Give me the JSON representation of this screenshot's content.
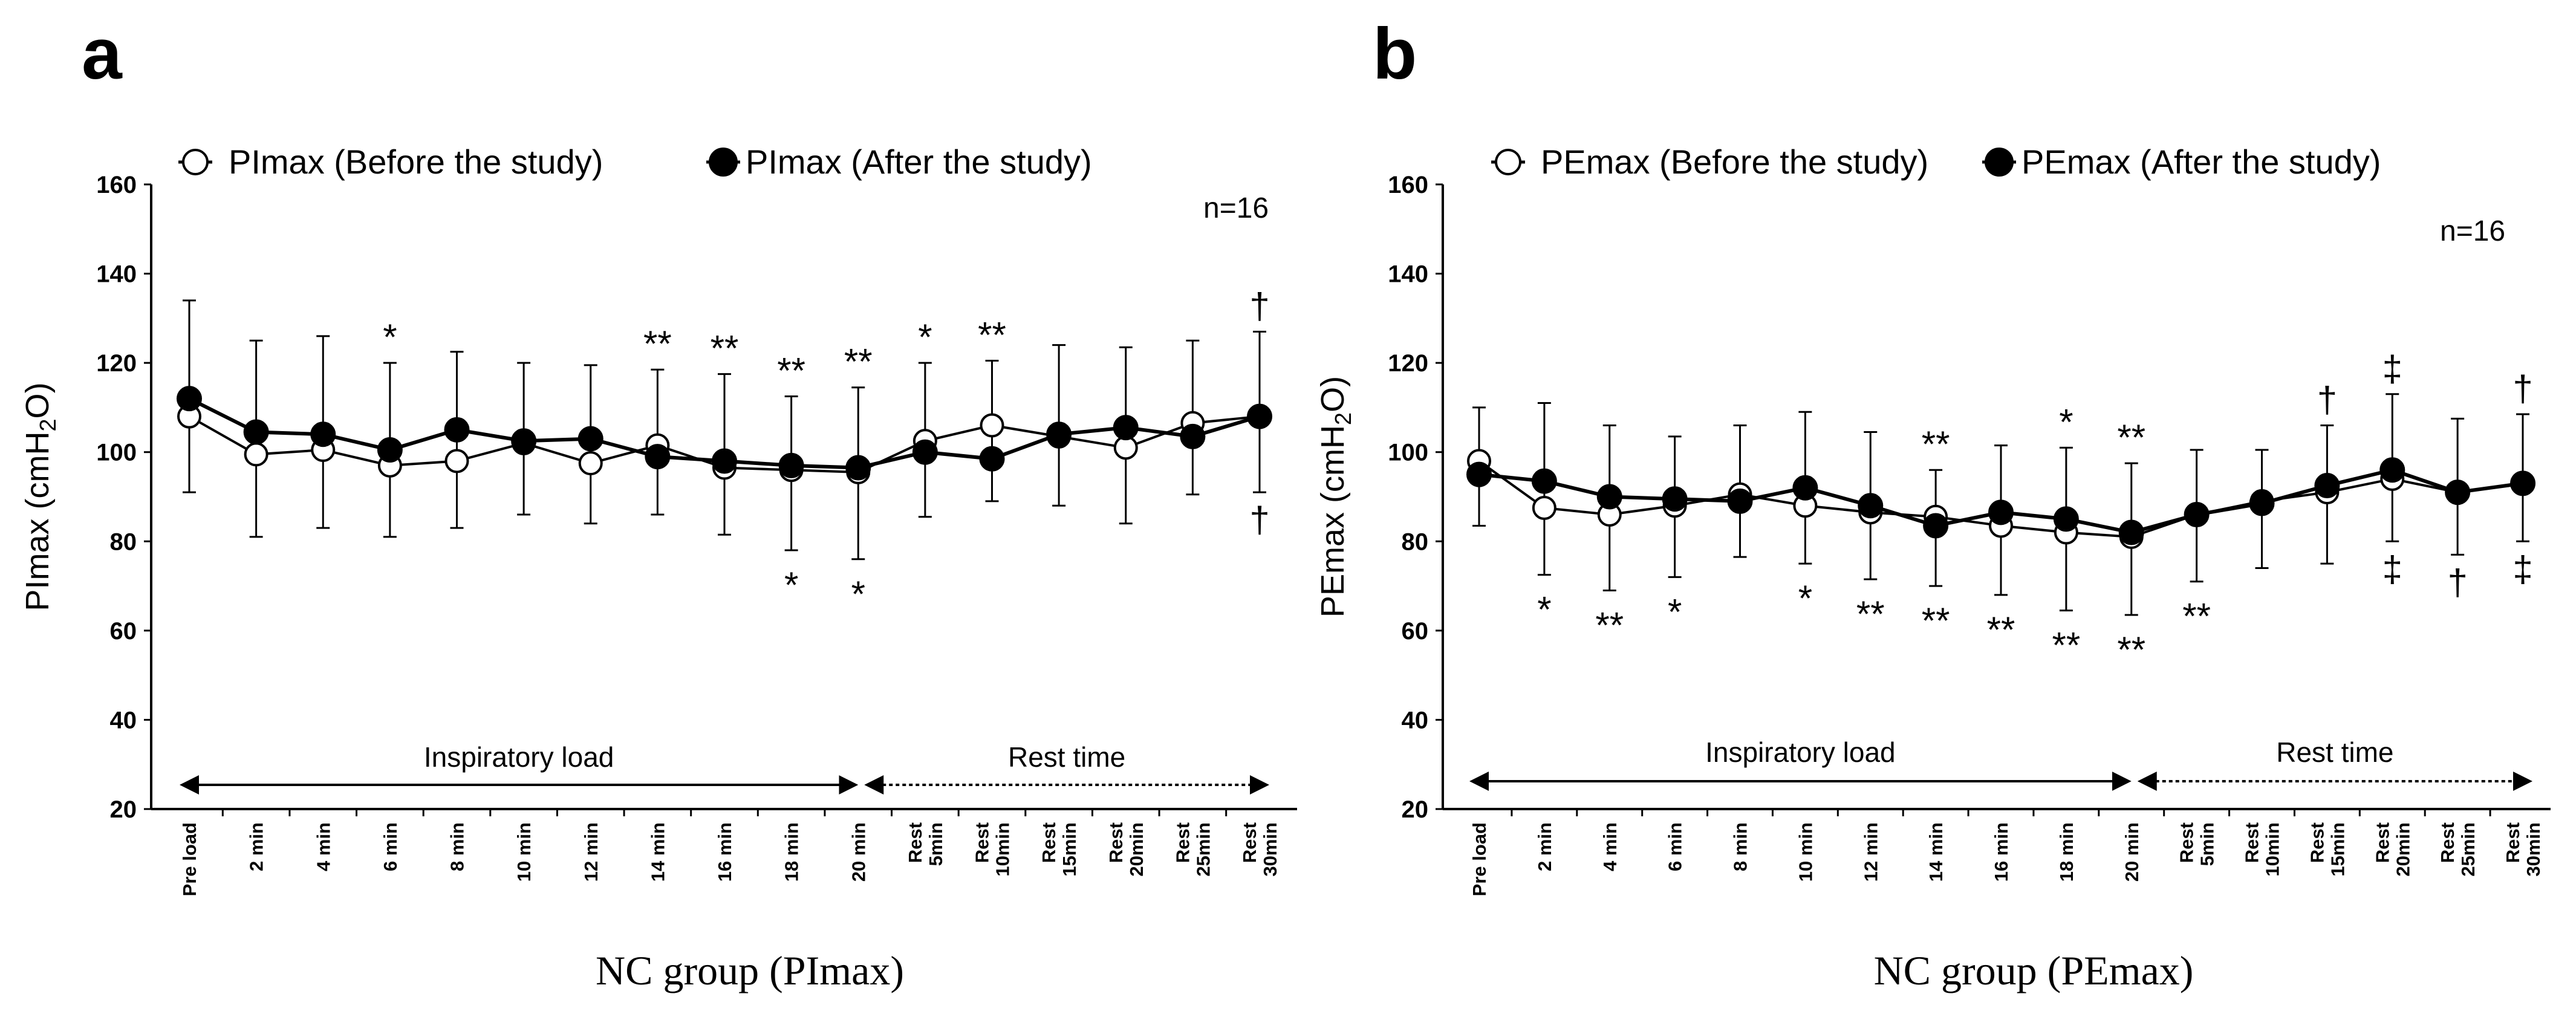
{
  "chart_data": [
    {
      "panel": "a",
      "type": "line",
      "title": "",
      "xlabel": "NC group (PImax)",
      "ylabel": "PImax (cmH2O)",
      "ylim": [
        20,
        160
      ],
      "yticks": [
        20,
        40,
        60,
        80,
        100,
        120,
        140,
        160
      ],
      "categories": [
        [
          "Pre load"
        ],
        [
          "2 min"
        ],
        [
          "4 min"
        ],
        [
          "6 min"
        ],
        [
          "8 min"
        ],
        [
          "10 min"
        ],
        [
          "12 min"
        ],
        [
          "14 min"
        ],
        [
          "16 min"
        ],
        [
          "18 min"
        ],
        [
          "20 min"
        ],
        [
          "Rest",
          "5min"
        ],
        [
          "Rest",
          "10min"
        ],
        [
          "Rest",
          "15min"
        ],
        [
          "Rest",
          "20min"
        ],
        [
          "Rest",
          "25min"
        ],
        [
          "Rest",
          "30min"
        ]
      ],
      "n_label": "n=16",
      "series": [
        {
          "name": "PImax (Before the study)",
          "marker": "open-circle",
          "values": [
            108,
            99.5,
            100.5,
            97,
            98,
            102,
            97.5,
            101.5,
            96.5,
            96,
            95.5,
            102.5,
            106,
            103.5,
            101,
            106.5,
            108
          ],
          "err_lower": [
            91,
            81,
            83,
            81,
            83,
            86,
            84,
            86,
            81.5,
            78,
            76,
            85.5,
            89,
            88,
            84,
            90.5,
            91
          ],
          "err_upper": [
            134,
            125,
            126,
            120,
            122.5,
            120,
            119.5,
            118.5,
            117.5,
            112.5,
            114.5,
            120,
            120.5,
            124,
            123.5,
            125,
            127
          ]
        },
        {
          "name": "PImax (After the study)",
          "marker": "filled-circle",
          "values": [
            112,
            104.5,
            104,
            100.5,
            105,
            102.5,
            103,
            99,
            98,
            97,
            96.5,
            100,
            98.5,
            104,
            105.5,
            103.5,
            108
          ],
          "err_lower": [],
          "err_upper": []
        }
      ],
      "annotations": [
        {
          "category": "6 min",
          "label": "*",
          "position": "above"
        },
        {
          "category": "14 min",
          "label": "**",
          "position": "above"
        },
        {
          "category": "16 min",
          "label": "**",
          "position": "above"
        },
        {
          "category": "18 min",
          "label": "**",
          "position": "above"
        },
        {
          "category": "18 min",
          "label": "*",
          "position": "below"
        },
        {
          "category": "20 min",
          "label": "**",
          "position": "above"
        },
        {
          "category": "20 min",
          "label": "*",
          "position": "below"
        },
        {
          "category": "Rest 5min",
          "label": "*",
          "position": "above"
        },
        {
          "category": "Rest 10min",
          "label": "**",
          "position": "above"
        },
        {
          "category": "Rest 30min",
          "label": "†",
          "position": "above"
        },
        {
          "category": "Rest 30min",
          "label": "†",
          "position": "below"
        }
      ],
      "phases": [
        {
          "label": "Inspiratory load",
          "from": "Pre load",
          "to": "20 min",
          "style": "solid"
        },
        {
          "label": "Rest time",
          "from": "20 min",
          "to": "Rest 30min",
          "style": "dotted"
        }
      ]
    },
    {
      "panel": "b",
      "type": "line",
      "title": "",
      "xlabel": "NC group (PEmax)",
      "ylabel": "PEmax (cmH2O)",
      "ylim": [
        20,
        160
      ],
      "yticks": [
        20,
        40,
        60,
        80,
        100,
        120,
        140,
        160
      ],
      "categories": [
        [
          "Pre load"
        ],
        [
          "2 min"
        ],
        [
          "4 min"
        ],
        [
          "6 min"
        ],
        [
          "8 min"
        ],
        [
          "10 min"
        ],
        [
          "12 min"
        ],
        [
          "14 min"
        ],
        [
          "16 min"
        ],
        [
          "18 min"
        ],
        [
          "20 min"
        ],
        [
          "Rest",
          "5min"
        ],
        [
          "Rest",
          "10min"
        ],
        [
          "Rest",
          "15min"
        ],
        [
          "Rest",
          "20min"
        ],
        [
          "Rest",
          "25min"
        ],
        [
          "Rest",
          "30min"
        ]
      ],
      "n_label": "n=16",
      "series": [
        {
          "name": "PEmax (Before the study)",
          "marker": "open-circle",
          "values": [
            98,
            87.5,
            86,
            88,
            90.5,
            88,
            86.5,
            85.5,
            83.5,
            82,
            81,
            86,
            89,
            91,
            94,
            91,
            93
          ],
          "err_lower": [
            83.5,
            72.5,
            69,
            72,
            76.5,
            75,
            71.5,
            70,
            68,
            64.5,
            63.5,
            71,
            74,
            75,
            80,
            77,
            80
          ],
          "err_upper": [
            110,
            111,
            106,
            103.5,
            106,
            109,
            104.5,
            96,
            101.5,
            101,
            97.5,
            100.5,
            100.5,
            106,
            113,
            107.5,
            108.5
          ]
        },
        {
          "name": "PEmax (After the study)",
          "marker": "filled-circle",
          "values": [
            95,
            93.5,
            90,
            89.5,
            89,
            92,
            88,
            83.5,
            86.5,
            85,
            82,
            86,
            88.5,
            92.5,
            96,
            91,
            93
          ],
          "err_lower": [],
          "err_upper": []
        }
      ],
      "annotations": [
        {
          "category": "2 min",
          "label": "*",
          "position": "below"
        },
        {
          "category": "4 min",
          "label": "**",
          "position": "below"
        },
        {
          "category": "6 min",
          "label": "*",
          "position": "below"
        },
        {
          "category": "10 min",
          "label": "*",
          "position": "below"
        },
        {
          "category": "12 min",
          "label": "**",
          "position": "below"
        },
        {
          "category": "14 min",
          "label": "**",
          "position": "above"
        },
        {
          "category": "14 min",
          "label": "**",
          "position": "below"
        },
        {
          "category": "16 min",
          "label": "**",
          "position": "below"
        },
        {
          "category": "18 min",
          "label": "*",
          "position": "above"
        },
        {
          "category": "18 min",
          "label": "**",
          "position": "below"
        },
        {
          "category": "20 min",
          "label": "**",
          "position": "above"
        },
        {
          "category": "20 min",
          "label": "**",
          "position": "below"
        },
        {
          "category": "Rest 5min",
          "label": "**",
          "position": "below"
        },
        {
          "category": "Rest 15min",
          "label": "†",
          "position": "above"
        },
        {
          "category": "Rest 20min",
          "label": "‡",
          "position": "above"
        },
        {
          "category": "Rest 20min",
          "label": "‡",
          "position": "below"
        },
        {
          "category": "Rest 25min",
          "label": "†",
          "position": "below"
        },
        {
          "category": "Rest 30min",
          "label": "†",
          "position": "above"
        },
        {
          "category": "Rest 30min",
          "label": "‡",
          "position": "below"
        }
      ],
      "phases": [
        {
          "label": "Inspiratory load",
          "from": "Pre load",
          "to": "20 min",
          "style": "solid"
        },
        {
          "label": "Rest time",
          "from": "20 min",
          "to": "Rest 30min",
          "style": "dotted"
        }
      ]
    }
  ]
}
